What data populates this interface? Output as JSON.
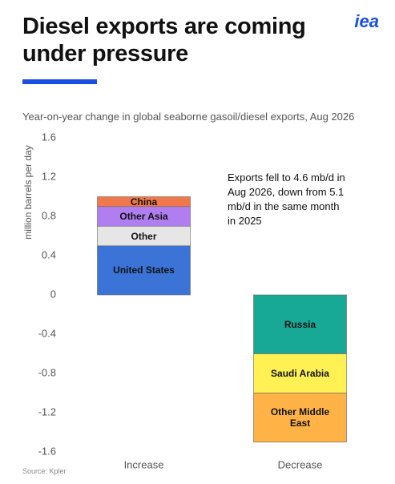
{
  "logo": "iea",
  "chart_data": {
    "type": "stacked_bar",
    "title": "Diesel exports are coming under pressure",
    "subtitle": "Year-on-year change in global seaborne gasoil/diesel exports, Aug 2026",
    "y_label": "million barrels per day",
    "annotation": "Exports fell to 4.6 mb/d in Aug 2026, down from 5.1 mb/d in the same month in 2025",
    "source": "Source: Kpler",
    "categories": [
      "Increase",
      "Decrease"
    ],
    "series": [
      {
        "name": "United States",
        "color": "#3b74d6",
        "values": [
          0.5,
          null
        ]
      },
      {
        "name": "Other",
        "color": "#e6e6e6",
        "values": [
          0.2,
          null
        ]
      },
      {
        "name": "Other Asia",
        "color": "#b07ef0",
        "values": [
          0.2,
          null
        ]
      },
      {
        "name": "China",
        "color": "#f0784a",
        "values": [
          0.1,
          null
        ]
      },
      {
        "name": "Russia",
        "color": "#17a996",
        "values": [
          null,
          -0.6
        ]
      },
      {
        "name": "Saudi Arabia",
        "color": "#fff154",
        "values": [
          null,
          -0.4
        ]
      },
      {
        "name": "Other Middle East",
        "color": "#ffb347",
        "values": [
          null,
          -0.5
        ]
      }
    ],
    "ylim": [
      -1.6,
      1.6
    ],
    "yticks": [
      1.6,
      1.2,
      0.8,
      0.4,
      0,
      -0.4,
      -0.8,
      -1.2,
      -1.6
    ]
  }
}
